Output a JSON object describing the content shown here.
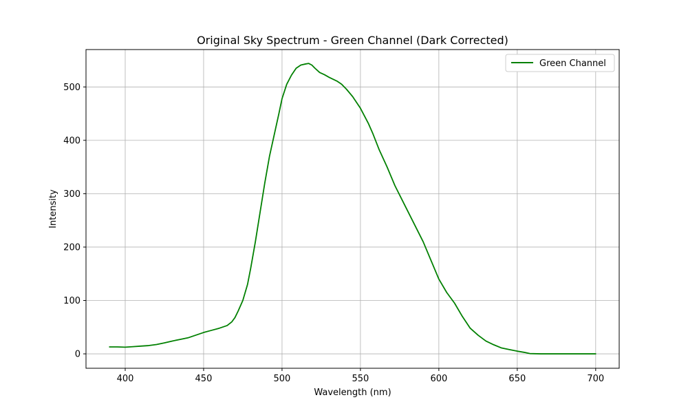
{
  "chart_data": {
    "type": "line",
    "title": "Original Sky Spectrum - Green Channel (Dark Corrected)",
    "xlabel": "Wavelength (nm)",
    "ylabel": "Intensity",
    "xlim": [
      375,
      715
    ],
    "ylim": [
      -27,
      570
    ],
    "x_ticks": [
      400,
      450,
      500,
      550,
      600,
      650,
      700
    ],
    "y_ticks": [
      0,
      100,
      200,
      300,
      400,
      500
    ],
    "grid": true,
    "legend_position": "top-right",
    "series": [
      {
        "name": "Green Channel",
        "color": "#008000",
        "points": [
          [
            390,
            13
          ],
          [
            395,
            13
          ],
          [
            400,
            12.5
          ],
          [
            405,
            13.5
          ],
          [
            410,
            14.5
          ],
          [
            415,
            15.5
          ],
          [
            420,
            17.5
          ],
          [
            425,
            20.5
          ],
          [
            430,
            24
          ],
          [
            435,
            27
          ],
          [
            440,
            30
          ],
          [
            445,
            35
          ],
          [
            450,
            40
          ],
          [
            455,
            44
          ],
          [
            460,
            48
          ],
          [
            465,
            53
          ],
          [
            468,
            60
          ],
          [
            470,
            68
          ],
          [
            472,
            80
          ],
          [
            475,
            100
          ],
          [
            478,
            130
          ],
          [
            480,
            160
          ],
          [
            483,
            210
          ],
          [
            486,
            265
          ],
          [
            489,
            320
          ],
          [
            492,
            370
          ],
          [
            495,
            410
          ],
          [
            498,
            450
          ],
          [
            500,
            478
          ],
          [
            503,
            505
          ],
          [
            506,
            522
          ],
          [
            509,
            535
          ],
          [
            512,
            541
          ],
          [
            515,
            543
          ],
          [
            517,
            544
          ],
          [
            519,
            541
          ],
          [
            521,
            535
          ],
          [
            524,
            527
          ],
          [
            527,
            523
          ],
          [
            530,
            518
          ],
          [
            535,
            511
          ],
          [
            538,
            505
          ],
          [
            541,
            496
          ],
          [
            545,
            482
          ],
          [
            550,
            460
          ],
          [
            555,
            432
          ],
          [
            558,
            412
          ],
          [
            562,
            382
          ],
          [
            567,
            350
          ],
          [
            572,
            315
          ],
          [
            578,
            280
          ],
          [
            584,
            245
          ],
          [
            590,
            210
          ],
          [
            595,
            175
          ],
          [
            600,
            140
          ],
          [
            605,
            115
          ],
          [
            610,
            95
          ],
          [
            615,
            70
          ],
          [
            620,
            48
          ],
          [
            625,
            35
          ],
          [
            630,
            24
          ],
          [
            635,
            17
          ],
          [
            640,
            11
          ],
          [
            645,
            8
          ],
          [
            650,
            5
          ],
          [
            655,
            2.5
          ],
          [
            658,
            0.5
          ],
          [
            665,
            0
          ],
          [
            670,
            0
          ],
          [
            680,
            0
          ],
          [
            690,
            0
          ],
          [
            700,
            0
          ]
        ]
      }
    ]
  }
}
